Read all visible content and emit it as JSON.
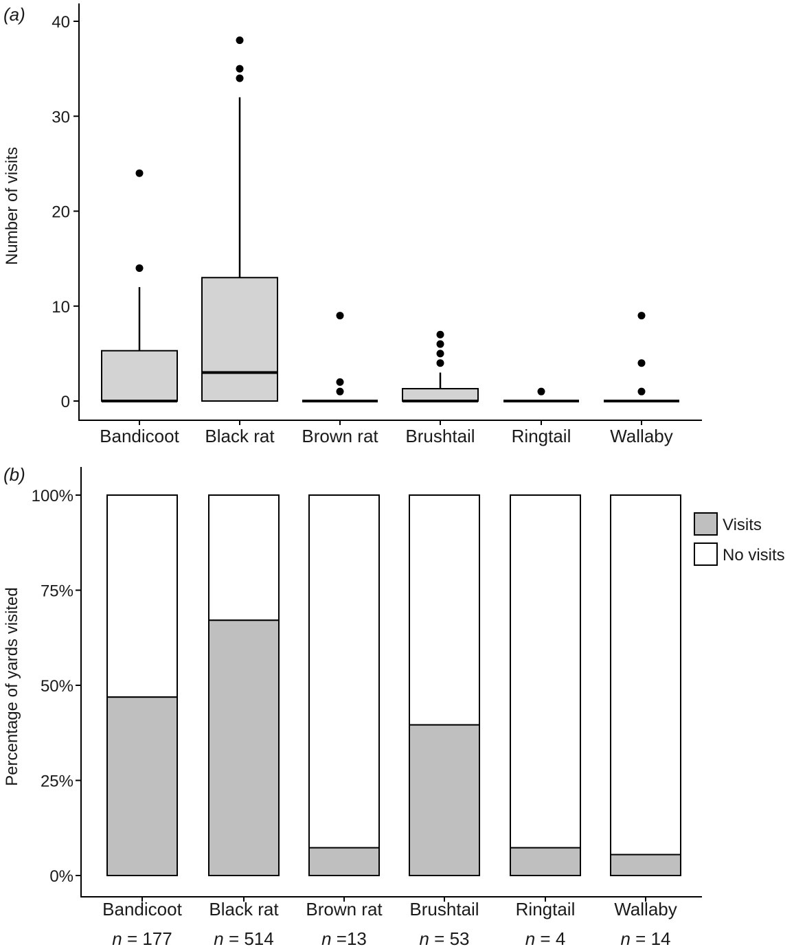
{
  "chart_data": [
    {
      "panel": "(a)",
      "type": "boxplot",
      "ylabel": "Number of visits",
      "ylim": [
        0,
        42
      ],
      "yticks": [
        0,
        10,
        20,
        30,
        40
      ],
      "categories": [
        "Bandicoot",
        "Black rat",
        "Brown rat",
        "Brushtail",
        "Ringtail",
        "Wallaby"
      ],
      "box_fill": "#d3d3d3",
      "boxes": [
        {
          "category": "Bandicoot",
          "whisker_low": 0,
          "q1": 0,
          "median": 0,
          "q3": 5.3,
          "whisker_high": 12,
          "outliers": [
            14,
            24
          ]
        },
        {
          "category": "Black rat",
          "whisker_low": 0,
          "q1": 0,
          "median": 3,
          "q3": 13,
          "whisker_high": 32,
          "outliers": [
            34,
            35,
            38
          ]
        },
        {
          "category": "Brown rat",
          "whisker_low": 0,
          "q1": 0,
          "median": 0,
          "q3": 0,
          "whisker_high": 0,
          "outliers": [
            1,
            2,
            9
          ]
        },
        {
          "category": "Brushtail",
          "whisker_low": 0,
          "q1": 0,
          "median": 0,
          "q3": 1.3,
          "whisker_high": 3,
          "outliers": [
            4,
            5,
            6,
            7
          ]
        },
        {
          "category": "Ringtail",
          "whisker_low": 0,
          "q1": 0,
          "median": 0,
          "q3": 0,
          "whisker_high": 0,
          "outliers": [
            1
          ]
        },
        {
          "category": "Wallaby",
          "whisker_low": 0,
          "q1": 0,
          "median": 0,
          "q3": 0,
          "whisker_high": 0,
          "outliers": [
            1,
            4,
            9
          ]
        }
      ]
    },
    {
      "panel": "(b)",
      "type": "bar",
      "stacked": true,
      "ylabel": "Percentage of yards visited",
      "ylim": [
        0,
        100
      ],
      "yticks": [
        "0%",
        "25%",
        "50%",
        "75%",
        "100%"
      ],
      "categories": [
        "Bandicoot",
        "Black rat",
        "Brown rat",
        "Brushtail",
        "Ringtail",
        "Wallaby"
      ],
      "n_prefix": "n",
      "n_labels": [
        "= 177",
        "= 514",
        "=13",
        "= 53",
        "= 4",
        "= 14"
      ],
      "series": [
        {
          "name": "Visits",
          "color": "#bfbfbf",
          "values": [
            46.9,
            67.1,
            7.3,
            39.6,
            7.3,
            5.5
          ]
        },
        {
          "name": "No visits",
          "color": "#ffffff",
          "values": [
            53.1,
            32.9,
            92.7,
            60.4,
            92.7,
            94.5
          ]
        }
      ],
      "legend": "right"
    }
  ]
}
